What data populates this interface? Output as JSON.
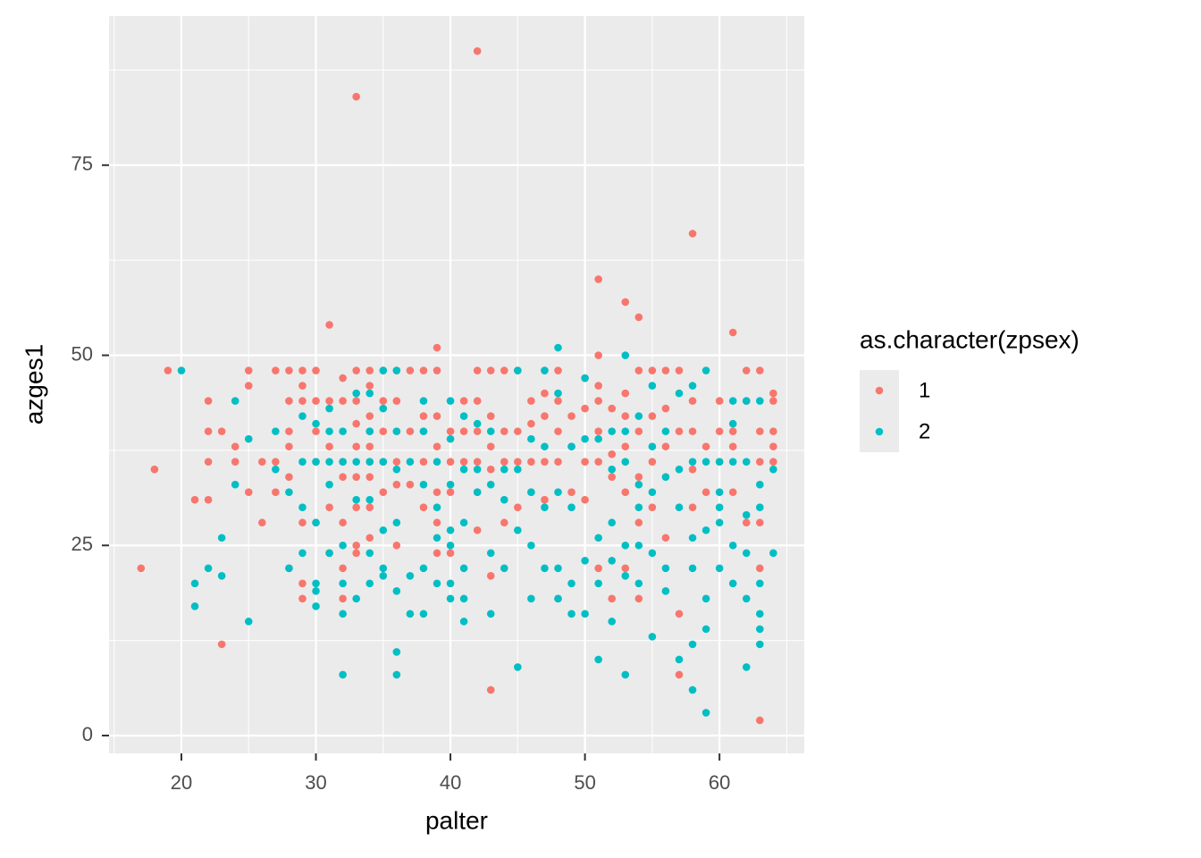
{
  "chart_data": {
    "type": "scatter",
    "x_label": "palter",
    "y_label": "azges1",
    "legend_title": "as.character(zpsex)",
    "legend_position": "right",
    "xlim": [
      14.62,
      66.3
    ],
    "ylim": [
      -2.35,
      94.6
    ],
    "xticks": [
      20,
      30,
      40,
      50,
      60
    ],
    "yticks": [
      0,
      25,
      50,
      75
    ],
    "grid": true,
    "series": [
      {
        "name": "1",
        "color": "#F8766D",
        "x": [
          17,
          18,
          19,
          21,
          22,
          22,
          22,
          22,
          23,
          23,
          24,
          24,
          25,
          25,
          25,
          26,
          26,
          27,
          27,
          27,
          28,
          28,
          28,
          28,
          28,
          28,
          29,
          29,
          29,
          29,
          29,
          29,
          30,
          30,
          30,
          30,
          30,
          31,
          31,
          31,
          31,
          31,
          32,
          32,
          32,
          32,
          32,
          32,
          32,
          33,
          33,
          33,
          33,
          33,
          33,
          33,
          33,
          33,
          34,
          34,
          34,
          34,
          34,
          34,
          34,
          34,
          34,
          35,
          35,
          35,
          35,
          35,
          36,
          36,
          36,
          36,
          36,
          36,
          37,
          37,
          37,
          38,
          38,
          38,
          38,
          38,
          39,
          39,
          39,
          39,
          39,
          39,
          39,
          40,
          40,
          40,
          40,
          41,
          41,
          41,
          42,
          42,
          42,
          42,
          42,
          42,
          42,
          43,
          43,
          43,
          43,
          43,
          43,
          44,
          44,
          44,
          44,
          45,
          45,
          45,
          45,
          46,
          46,
          46,
          46,
          47,
          47,
          47,
          47,
          47,
          48,
          48,
          48,
          48,
          48,
          49,
          49,
          49,
          50,
          50,
          50,
          50,
          51,
          51,
          51,
          51,
          51,
          51,
          51,
          52,
          52,
          52,
          52,
          53,
          53,
          53,
          53,
          53,
          53,
          54,
          54,
          54,
          54,
          54,
          54,
          55,
          55,
          55,
          55,
          56,
          56,
          56,
          56,
          57,
          57,
          57,
          57,
          58,
          58,
          58,
          58,
          58,
          59,
          59,
          60,
          60,
          60,
          61,
          61,
          61,
          61,
          62,
          62,
          62,
          63,
          63,
          63,
          63,
          63,
          63,
          64,
          64,
          64,
          64,
          64
        ],
        "values": [
          22,
          35,
          48,
          31,
          44,
          40,
          36,
          31,
          40,
          12,
          38,
          36,
          48,
          46,
          32,
          36,
          28,
          48,
          36,
          32,
          48,
          44,
          40,
          38,
          34,
          22,
          48,
          46,
          44,
          28,
          20,
          18,
          48,
          44,
          40,
          36,
          28,
          54,
          44,
          38,
          30,
          24,
          47,
          44,
          36,
          34,
          28,
          22,
          18,
          84,
          48,
          44,
          41,
          38,
          34,
          30,
          25,
          24,
          48,
          46,
          42,
          40,
          38,
          36,
          34,
          30,
          26,
          48,
          44,
          40,
          36,
          32,
          48,
          44,
          40,
          36,
          33,
          25,
          48,
          40,
          33,
          48,
          42,
          40,
          36,
          30,
          51,
          48,
          42,
          38,
          32,
          28,
          24,
          40,
          36,
          32,
          24,
          44,
          40,
          36,
          90,
          48,
          44,
          40,
          36,
          32,
          27,
          48,
          42,
          38,
          35,
          21,
          6,
          48,
          40,
          36,
          28,
          48,
          40,
          36,
          30,
          44,
          41,
          36,
          32,
          48,
          45,
          42,
          36,
          31,
          48,
          44,
          40,
          36,
          18,
          42,
          38,
          32,
          47,
          43,
          36,
          31,
          60,
          50,
          46,
          44,
          40,
          36,
          22,
          43,
          37,
          34,
          18,
          57,
          45,
          42,
          38,
          32,
          22,
          55,
          48,
          40,
          34,
          28,
          18,
          48,
          42,
          36,
          30,
          48,
          43,
          38,
          26,
          48,
          40,
          16,
          8,
          66,
          44,
          40,
          35,
          30,
          38,
          32,
          44,
          40,
          36,
          53,
          40,
          38,
          32,
          48,
          44,
          28,
          48,
          40,
          36,
          28,
          22,
          2,
          44,
          40,
          36,
          45,
          38
        ]
      },
      {
        "name": "2",
        "color": "#00BFC4",
        "x": [
          20,
          21,
          21,
          22,
          23,
          23,
          24,
          24,
          25,
          25,
          27,
          27,
          28,
          28,
          29,
          29,
          29,
          29,
          30,
          30,
          30,
          30,
          30,
          30,
          31,
          31,
          31,
          31,
          31,
          32,
          32,
          32,
          32,
          32,
          32,
          33,
          33,
          33,
          33,
          34,
          34,
          34,
          34,
          34,
          34,
          35,
          35,
          35,
          35,
          35,
          35,
          36,
          36,
          36,
          36,
          36,
          36,
          36,
          37,
          37,
          37,
          38,
          38,
          38,
          38,
          38,
          39,
          39,
          39,
          39,
          40,
          40,
          40,
          40,
          40,
          40,
          40,
          41,
          41,
          41,
          41,
          41,
          41,
          42,
          42,
          42,
          43,
          43,
          43,
          43,
          44,
          44,
          44,
          45,
          45,
          45,
          45,
          46,
          46,
          46,
          46,
          47,
          47,
          47,
          47,
          48,
          48,
          48,
          48,
          48,
          49,
          49,
          49,
          49,
          50,
          50,
          50,
          50,
          51,
          51,
          51,
          51,
          52,
          52,
          52,
          52,
          52,
          53,
          53,
          53,
          53,
          53,
          53,
          54,
          54,
          54,
          54,
          54,
          55,
          55,
          55,
          55,
          55,
          56,
          56,
          56,
          56,
          57,
          57,
          57,
          57,
          58,
          58,
          58,
          58,
          58,
          58,
          59,
          59,
          59,
          59,
          59,
          59,
          60,
          60,
          60,
          60,
          60,
          61,
          61,
          61,
          61,
          61,
          62,
          62,
          62,
          62,
          62,
          62,
          63,
          63,
          63,
          63,
          63,
          63,
          63,
          64,
          64
        ],
        "values": [
          48,
          20,
          17,
          22,
          26,
          21,
          44,
          33,
          39,
          15,
          40,
          35,
          32,
          22,
          42,
          36,
          30,
          24,
          41,
          36,
          28,
          20,
          19,
          17,
          43,
          40,
          36,
          33,
          24,
          40,
          36,
          25,
          20,
          16,
          8,
          45,
          36,
          31,
          18,
          45,
          40,
          36,
          31,
          24,
          20,
          48,
          43,
          36,
          27,
          22,
          21,
          48,
          40,
          35,
          28,
          19,
          11,
          8,
          36,
          21,
          16,
          44,
          40,
          33,
          22,
          16,
          36,
          30,
          26,
          20,
          44,
          39,
          33,
          27,
          25,
          20,
          18,
          42,
          35,
          28,
          22,
          18,
          15,
          41,
          35,
          32,
          40,
          33,
          24,
          16,
          35,
          31,
          22,
          48,
          35,
          27,
          9,
          39,
          32,
          25,
          18,
          48,
          38,
          30,
          22,
          51,
          45,
          32,
          22,
          18,
          38,
          30,
          20,
          16,
          47,
          39,
          23,
          16,
          39,
          26,
          20,
          10,
          40,
          35,
          28,
          23,
          15,
          50,
          40,
          36,
          25,
          21,
          8,
          42,
          33,
          30,
          25,
          20,
          46,
          38,
          32,
          24,
          13,
          40,
          34,
          22,
          19,
          45,
          35,
          30,
          10,
          46,
          36,
          26,
          22,
          12,
          6,
          48,
          36,
          27,
          18,
          14,
          3,
          36,
          32,
          30,
          28,
          22,
          44,
          41,
          36,
          25,
          20,
          44,
          36,
          29,
          24,
          18,
          9,
          44,
          33,
          30,
          20,
          16,
          14,
          12,
          35,
          24
        ]
      }
    ]
  }
}
